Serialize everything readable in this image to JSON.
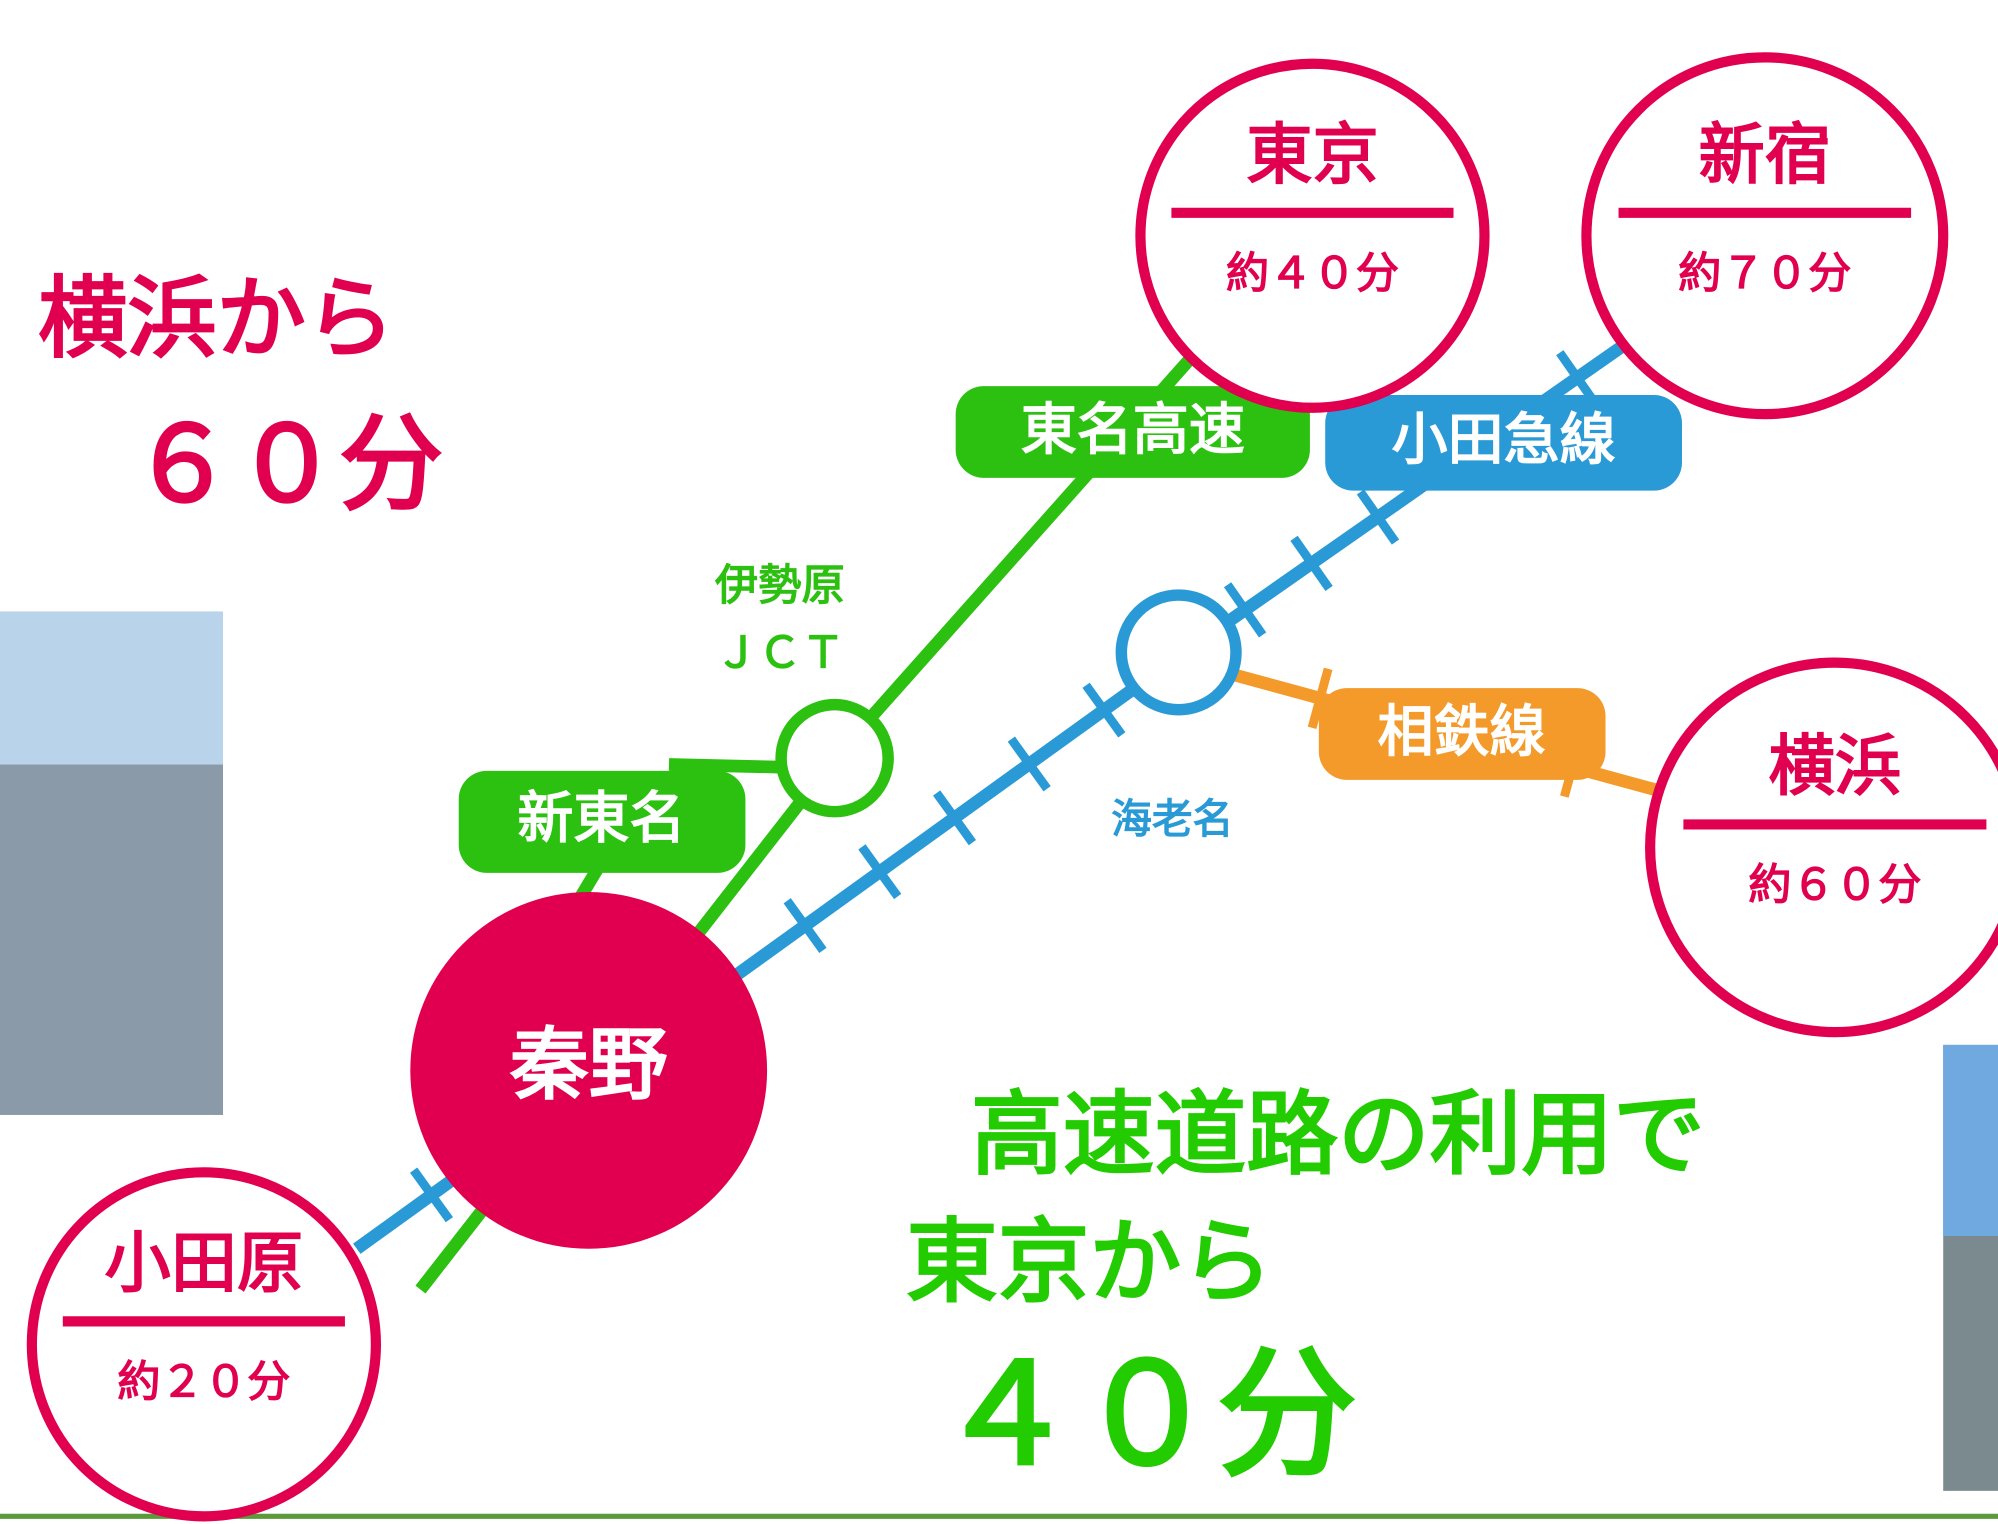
{
  "headline_yokohama": {
    "line1": "横浜から",
    "line2": "６０分"
  },
  "headline_tokyo": {
    "line1": "高速道路の利用で",
    "line2": "東京から",
    "line3": "４０分"
  },
  "center": {
    "label": "秦野"
  },
  "destinations": [
    {
      "name": "東京",
      "time": "約４０分"
    },
    {
      "name": "新宿",
      "time": "約７０分"
    },
    {
      "name": "横浜",
      "time": "約６０分"
    },
    {
      "name": "小田原",
      "time": "約２０分"
    }
  ],
  "routes": [
    {
      "label": "東名高速"
    },
    {
      "label": "小田急線"
    },
    {
      "label": "新東名"
    },
    {
      "label": "相鉄線"
    }
  ],
  "junctions": [
    {
      "line1": "伊勢原",
      "line2": "ＪＣＴ"
    },
    {
      "label": "海老名"
    }
  ]
}
